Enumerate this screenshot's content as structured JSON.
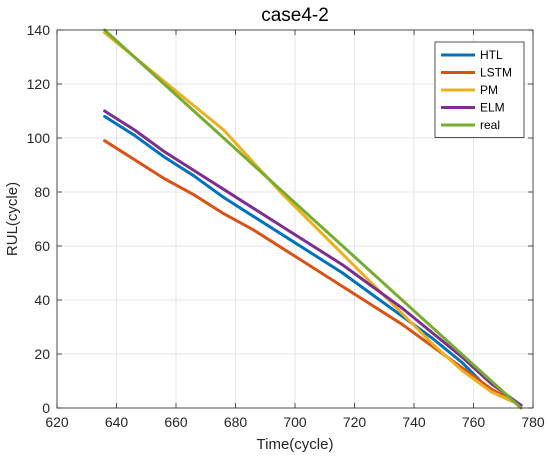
{
  "chart_data": {
    "type": "line",
    "title": "case4-2",
    "xlabel": "Time(cycle)",
    "ylabel": "RUL(cycle)",
    "xlim": [
      620,
      780
    ],
    "ylim": [
      0,
      140
    ],
    "xticks": [
      620,
      640,
      660,
      680,
      700,
      720,
      740,
      760,
      780
    ],
    "yticks": [
      0,
      20,
      40,
      60,
      80,
      100,
      120,
      140
    ],
    "grid": true,
    "legend_position": "top-right",
    "series": [
      {
        "name": "HTL",
        "color": "#0072BD",
        "x": [
          636,
          646,
          656,
          666,
          676,
          686,
          696,
          706,
          716,
          726,
          736,
          746,
          756,
          766,
          776
        ],
        "y": [
          108,
          101,
          93,
          86,
          78,
          71,
          64,
          57,
          50,
          42,
          34,
          26,
          17,
          6,
          1
        ]
      },
      {
        "name": "LSTM",
        "color": "#D95319",
        "x": [
          636,
          646,
          656,
          666,
          676,
          686,
          696,
          706,
          716,
          726,
          736,
          746,
          756,
          766,
          776
        ],
        "y": [
          99,
          92,
          85,
          79,
          72,
          66,
          59,
          52,
          45,
          38,
          31,
          23,
          15,
          7,
          1
        ]
      },
      {
        "name": "PM",
        "color": "#EDB120",
        "x": [
          636,
          646,
          656,
          666,
          676,
          686,
          696,
          706,
          716,
          726,
          736,
          746,
          756,
          766,
          776
        ],
        "y": [
          139,
          130,
          121,
          112,
          103,
          91,
          79,
          68,
          57,
          46,
          35,
          24,
          14,
          6,
          1
        ]
      },
      {
        "name": "ELM",
        "color": "#7E2F8E",
        "x": [
          636,
          646,
          656,
          666,
          676,
          686,
          696,
          706,
          716,
          726,
          736,
          746,
          756,
          766,
          776
        ],
        "y": [
          110,
          103,
          95,
          88,
          81,
          74,
          67,
          60,
          53,
          45,
          37,
          28,
          19,
          9,
          1
        ]
      },
      {
        "name": "real",
        "color": "#77AC30",
        "x": [
          636,
          776
        ],
        "y": [
          140,
          0
        ]
      }
    ]
  }
}
